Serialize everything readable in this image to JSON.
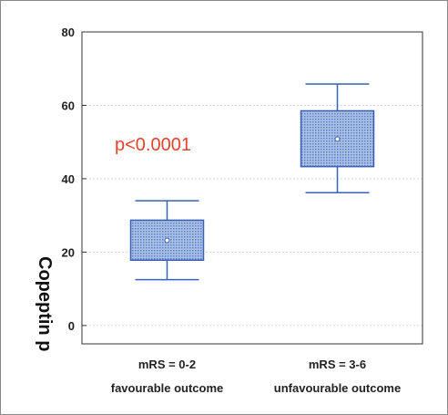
{
  "chart_data": {
    "type": "box",
    "title": "",
    "ylabel": "Copeptin p",
    "xlabel": "",
    "ylim": [
      -5,
      80
    ],
    "yticks": [
      0,
      20,
      40,
      60,
      80
    ],
    "grid": true,
    "annotation": "p<0.0001",
    "categories": [
      {
        "label": "mRS = 0-2",
        "sublabel": "favourable outcome"
      },
      {
        "label": "mRS = 3-6",
        "sublabel": "unfavourable outcome"
      }
    ],
    "boxes": [
      {
        "whisker_low": 12.5,
        "q1": 17.8,
        "median": 23.2,
        "q3": 28.7,
        "whisker_high": 34.0
      },
      {
        "whisker_low": 36.2,
        "q1": 43.3,
        "median": 50.8,
        "q3": 58.5,
        "whisker_high": 65.8
      }
    ]
  },
  "colors": {
    "box_fill": "#7fa0d8",
    "box_stroke": "#3a62b0",
    "axis": "#333333",
    "grid": "#d6d6d6",
    "annotation": "#e8412c"
  }
}
